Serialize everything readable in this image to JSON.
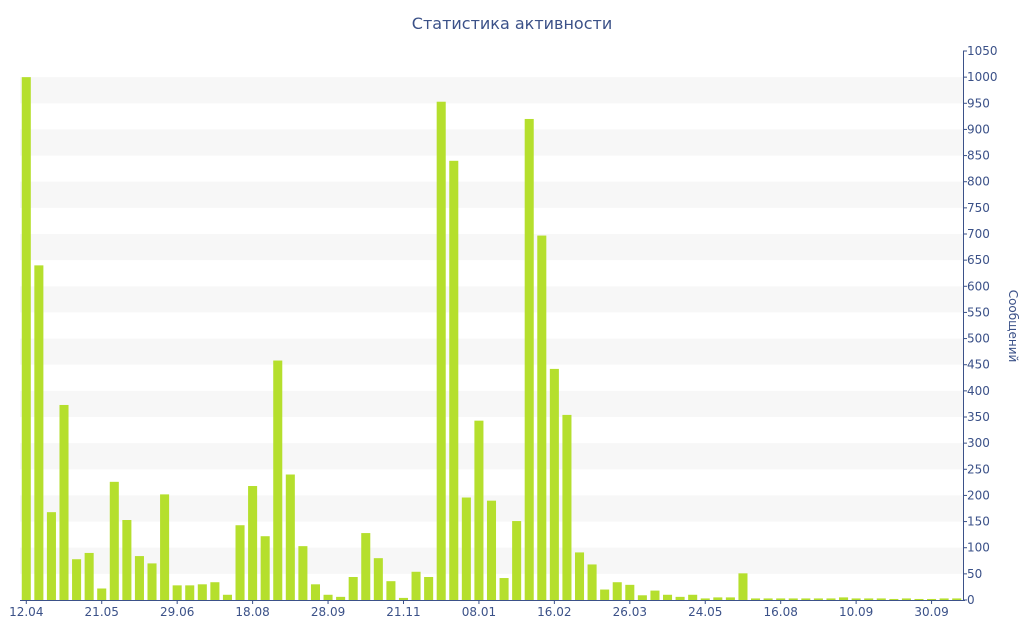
{
  "chart_data": {
    "type": "bar",
    "title": "Статистика активности",
    "xlabel": "",
    "ylabel": "Сообщений",
    "ylim": [
      0,
      1050
    ],
    "y_tick_step": 50,
    "y_axis_side": "right",
    "grid": "alternating horizontal bands",
    "legend": "none",
    "x_tick_labels": [
      {
        "index": 0,
        "label": "12.04"
      },
      {
        "index": 6,
        "label": "21.05"
      },
      {
        "index": 12,
        "label": "29.06"
      },
      {
        "index": 18,
        "label": "18.08"
      },
      {
        "index": 24,
        "label": "28.09"
      },
      {
        "index": 30,
        "label": "21.11"
      },
      {
        "index": 36,
        "label": "08.01"
      },
      {
        "index": 42,
        "label": "16.02"
      },
      {
        "index": 48,
        "label": "26.03"
      },
      {
        "index": 54,
        "label": "24.05"
      },
      {
        "index": 60,
        "label": "16.08"
      },
      {
        "index": 66,
        "label": "10.09"
      },
      {
        "index": 72,
        "label": "30.09"
      }
    ],
    "series": [
      {
        "values": [
          1000,
          640,
          168,
          373,
          78,
          90,
          22,
          226,
          153,
          84,
          70,
          202,
          28,
          28,
          30,
          34,
          10,
          143,
          218,
          122,
          458,
          240,
          103,
          30,
          10,
          6,
          44,
          128,
          80,
          36,
          4,
          54,
          44,
          953,
          840,
          196,
          343,
          190,
          42,
          151,
          920,
          697,
          442,
          354,
          91,
          68,
          20,
          34,
          29,
          9,
          18,
          10,
          6,
          10,
          3,
          5,
          5,
          51,
          3,
          3,
          3,
          3,
          3,
          3,
          3,
          5,
          3,
          3,
          3,
          2,
          3,
          2,
          2,
          3,
          3
        ]
      }
    ]
  },
  "colors": {
    "bar": "#b5df2d",
    "axis": "#3b5188",
    "band": "#f7f7f7",
    "text": "#3b5188"
  }
}
